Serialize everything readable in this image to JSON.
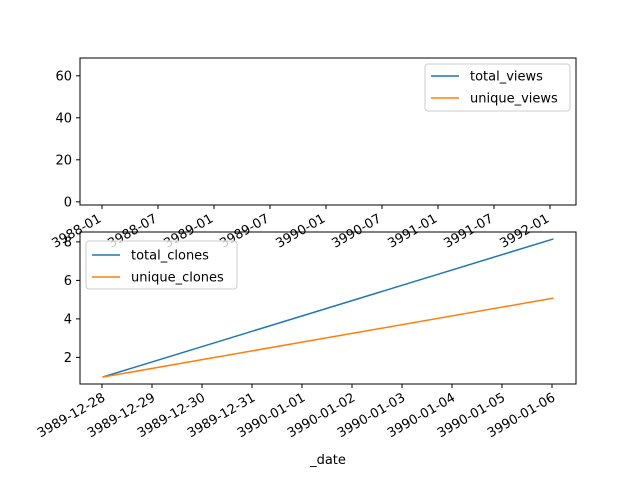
{
  "chart_data": [
    {
      "type": "line",
      "x_type": "date",
      "x": [],
      "xticks": [
        "3988-01",
        "3988-07",
        "3989-01",
        "3989-07",
        "3990-01",
        "3990-07",
        "3991-01",
        "3991-07",
        "3992-01"
      ],
      "xticks_visible": [
        "3988-01",
        "3988-07",
        "3989-01",
        "3989-07",
        "3990-01",
        "3990-07",
        "3991-01",
        "3991-07",
        "3992-01"
      ],
      "xlim": [
        "3987-11-17",
        "3992-02-14"
      ],
      "ylim": [
        -2,
        68
      ],
      "yticks": [
        0,
        20,
        40,
        60
      ],
      "xlabel": "",
      "ylabel": "",
      "grid": false,
      "legend_position": "upper right",
      "series": [
        {
          "name": "total_views",
          "color": "#1f77b4",
          "values": []
        },
        {
          "name": "unique_views",
          "color": "#ff7f0e",
          "values": []
        }
      ]
    },
    {
      "type": "line",
      "x_type": "date",
      "x": [
        "3989-12-28",
        "3990-01-06"
      ],
      "xticks": [
        "3989-12-28",
        "3989-12-29",
        "3989-12-30",
        "3989-12-31",
        "3990-01-01",
        "3990-01-02",
        "3990-01-03",
        "3990-01-04",
        "3990-01-05",
        "3990-01-06"
      ],
      "xlim": [
        "3989-12-27.55",
        "3990-01-06.45"
      ],
      "ylim": [
        0.65,
        8.35
      ],
      "yticks": [
        2,
        4,
        6,
        8
      ],
      "xlabel": "_date",
      "ylabel": "",
      "grid": false,
      "legend_position": "upper left",
      "series": [
        {
          "name": "total_clones",
          "color": "#1f77b4",
          "values": [
            1,
            8
          ]
        },
        {
          "name": "unique_clones",
          "color": "#ff7f0e",
          "values": [
            1,
            5
          ]
        }
      ]
    }
  ]
}
